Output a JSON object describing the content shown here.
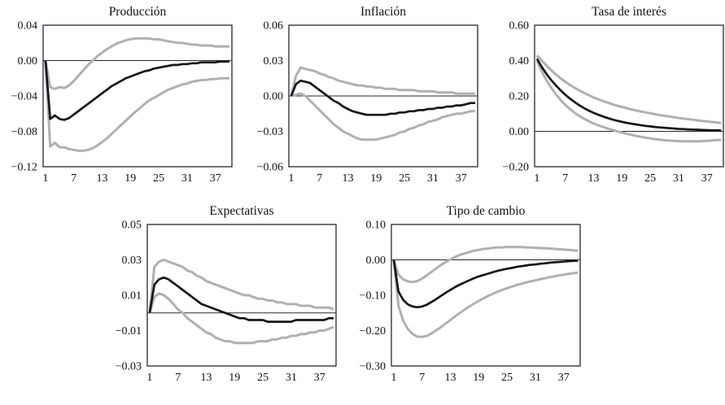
{
  "figure": {
    "background": "#ffffff",
    "frame_color": "#33373d",
    "zero_line_color": "#26282c",
    "band_color": "#b0b0b0",
    "median_color": "#14161a"
  },
  "chart_data": [
    {
      "type": "line",
      "title": "Producción",
      "xlabel": "",
      "ylabel": "",
      "x_range": [
        1,
        40
      ],
      "x_ticks": [
        1,
        7,
        13,
        19,
        25,
        31,
        37
      ],
      "ylim": [
        -0.12,
        0.04
      ],
      "y_ticks": [
        {
          "value": 0.04,
          "label": "0.04"
        },
        {
          "value": 0.0,
          "label": "0.00"
        },
        {
          "value": -0.04,
          "label": "−0.04"
        },
        {
          "value": -0.08,
          "label": "−0.08"
        },
        {
          "value": -0.12,
          "label": "−0.12"
        }
      ],
      "zero_line": true,
      "grid": false,
      "legend": "none",
      "series": [
        {
          "name": "upper-band",
          "color": "#b0b0b0",
          "width": 3,
          "values": [
            0.0,
            -0.03,
            -0.032,
            -0.03,
            -0.031,
            -0.028,
            -0.023,
            -0.017,
            -0.011,
            -0.005,
            0.0,
            0.005,
            0.009,
            0.013,
            0.016,
            0.019,
            0.021,
            0.023,
            0.024,
            0.025,
            0.025,
            0.025,
            0.025,
            0.024,
            0.024,
            0.023,
            0.022,
            0.021,
            0.02,
            0.02,
            0.019,
            0.018,
            0.018,
            0.017,
            0.017,
            0.017,
            0.016,
            0.016,
            0.016,
            0.016
          ]
        },
        {
          "name": "lower-band",
          "color": "#b0b0b0",
          "width": 3,
          "values": [
            0.0,
            -0.097,
            -0.093,
            -0.098,
            -0.098,
            -0.1,
            -0.101,
            -0.102,
            -0.102,
            -0.101,
            -0.099,
            -0.096,
            -0.092,
            -0.088,
            -0.083,
            -0.078,
            -0.073,
            -0.068,
            -0.063,
            -0.058,
            -0.054,
            -0.049,
            -0.045,
            -0.042,
            -0.039,
            -0.036,
            -0.033,
            -0.031,
            -0.029,
            -0.027,
            -0.026,
            -0.024,
            -0.023,
            -0.022,
            -0.022,
            -0.021,
            -0.021,
            -0.02,
            -0.02,
            -0.02
          ]
        },
        {
          "name": "response",
          "color": "#14161a",
          "width": 2.7,
          "values": [
            0.0,
            -0.066,
            -0.062,
            -0.066,
            -0.067,
            -0.065,
            -0.061,
            -0.057,
            -0.053,
            -0.049,
            -0.045,
            -0.041,
            -0.037,
            -0.033,
            -0.029,
            -0.026,
            -0.023,
            -0.02,
            -0.018,
            -0.016,
            -0.014,
            -0.012,
            -0.011,
            -0.009,
            -0.008,
            -0.007,
            -0.006,
            -0.005,
            -0.005,
            -0.004,
            -0.004,
            -0.003,
            -0.003,
            -0.002,
            -0.002,
            -0.002,
            -0.002,
            -0.001,
            -0.001,
            -0.001
          ]
        }
      ]
    },
    {
      "type": "line",
      "title": "Inflación",
      "xlabel": "",
      "ylabel": "",
      "x_range": [
        1,
        40
      ],
      "x_ticks": [
        1,
        7,
        13,
        19,
        25,
        31,
        37
      ],
      "ylim": [
        -0.06,
        0.06
      ],
      "y_ticks": [
        {
          "value": 0.06,
          "label": "0.06"
        },
        {
          "value": 0.03,
          "label": "0.03"
        },
        {
          "value": 0.0,
          "label": "0.00"
        },
        {
          "value": -0.03,
          "label": "−0.03"
        },
        {
          "value": -0.06,
          "label": "−0.06"
        }
      ],
      "zero_line": true,
      "grid": false,
      "legend": "none",
      "series": [
        {
          "name": "upper-band",
          "color": "#b0b0b0",
          "width": 3,
          "values": [
            0.0,
            0.017,
            0.024,
            0.023,
            0.022,
            0.021,
            0.019,
            0.018,
            0.016,
            0.015,
            0.013,
            0.012,
            0.011,
            0.01,
            0.009,
            0.009,
            0.008,
            0.008,
            0.007,
            0.007,
            0.006,
            0.006,
            0.006,
            0.005,
            0.005,
            0.005,
            0.005,
            0.004,
            0.004,
            0.004,
            0.004,
            0.003,
            0.003,
            0.003,
            0.003,
            0.002,
            0.002,
            0.002,
            0.002,
            0.002
          ]
        },
        {
          "name": "lower-band",
          "color": "#b0b0b0",
          "width": 3,
          "values": [
            0.0,
            0.001,
            0.002,
            0.0,
            -0.004,
            -0.008,
            -0.012,
            -0.016,
            -0.02,
            -0.024,
            -0.027,
            -0.03,
            -0.032,
            -0.034,
            -0.036,
            -0.037,
            -0.037,
            -0.037,
            -0.037,
            -0.036,
            -0.035,
            -0.034,
            -0.033,
            -0.031,
            -0.03,
            -0.028,
            -0.027,
            -0.025,
            -0.024,
            -0.022,
            -0.021,
            -0.02,
            -0.018,
            -0.017,
            -0.016,
            -0.015,
            -0.015,
            -0.014,
            -0.013,
            -0.013
          ]
        },
        {
          "name": "response",
          "color": "#14161a",
          "width": 2.7,
          "values": [
            0.0,
            0.01,
            0.013,
            0.012,
            0.011,
            0.008,
            0.005,
            0.002,
            -0.001,
            -0.004,
            -0.006,
            -0.009,
            -0.011,
            -0.013,
            -0.014,
            -0.015,
            -0.016,
            -0.016,
            -0.016,
            -0.016,
            -0.016,
            -0.015,
            -0.015,
            -0.014,
            -0.014,
            -0.013,
            -0.013,
            -0.012,
            -0.012,
            -0.011,
            -0.011,
            -0.01,
            -0.01,
            -0.009,
            -0.009,
            -0.008,
            -0.008,
            -0.007,
            -0.006,
            -0.006
          ]
        }
      ]
    },
    {
      "type": "line",
      "title": "Tasa de interés",
      "xlabel": "",
      "ylabel": "",
      "x_range": [
        1,
        40
      ],
      "x_ticks": [
        1,
        7,
        13,
        19,
        25,
        31,
        37
      ],
      "ylim": [
        -0.2,
        0.6
      ],
      "y_ticks": [
        {
          "value": 0.6,
          "label": "0.60"
        },
        {
          "value": 0.4,
          "label": "0.40"
        },
        {
          "value": 0.2,
          "label": "0.20"
        },
        {
          "value": 0.0,
          "label": "0.00"
        },
        {
          "value": -0.2,
          "label": "−0.20"
        }
      ],
      "zero_line": true,
      "grid": false,
      "legend": "none",
      "series": [
        {
          "name": "upper-band",
          "color": "#b0b0b0",
          "width": 3,
          "values": [
            0.43,
            0.4,
            0.372,
            0.346,
            0.322,
            0.3,
            0.28,
            0.262,
            0.246,
            0.231,
            0.217,
            0.204,
            0.192,
            0.181,
            0.171,
            0.162,
            0.153,
            0.145,
            0.138,
            0.131,
            0.124,
            0.118,
            0.112,
            0.107,
            0.102,
            0.097,
            0.092,
            0.088,
            0.084,
            0.08,
            0.076,
            0.072,
            0.069,
            0.066,
            0.062,
            0.059,
            0.056,
            0.053,
            0.05,
            0.048
          ]
        },
        {
          "name": "lower-band",
          "color": "#b0b0b0",
          "width": 3,
          "values": [
            0.398,
            0.34,
            0.29,
            0.247,
            0.21,
            0.178,
            0.15,
            0.126,
            0.105,
            0.087,
            0.071,
            0.057,
            0.045,
            0.034,
            0.025,
            0.016,
            0.008,
            0.0,
            -0.007,
            -0.014,
            -0.02,
            -0.026,
            -0.031,
            -0.036,
            -0.04,
            -0.044,
            -0.047,
            -0.05,
            -0.052,
            -0.054,
            -0.055,
            -0.056,
            -0.056,
            -0.056,
            -0.056,
            -0.055,
            -0.054,
            -0.052,
            -0.05,
            -0.047
          ]
        },
        {
          "name": "response",
          "color": "#14161a",
          "width": 2.7,
          "values": [
            0.41,
            0.365,
            0.325,
            0.29,
            0.26,
            0.232,
            0.207,
            0.185,
            0.165,
            0.147,
            0.131,
            0.117,
            0.105,
            0.094,
            0.084,
            0.075,
            0.067,
            0.06,
            0.054,
            0.048,
            0.043,
            0.039,
            0.035,
            0.031,
            0.028,
            0.025,
            0.022,
            0.02,
            0.018,
            0.016,
            0.014,
            0.013,
            0.011,
            0.01,
            0.009,
            0.008,
            0.007,
            0.006,
            0.006,
            0.005
          ]
        }
      ]
    },
    {
      "type": "line",
      "title": "Expectativas",
      "xlabel": "",
      "ylabel": "",
      "x_range": [
        1,
        40
      ],
      "x_ticks": [
        1,
        7,
        13,
        19,
        25,
        31,
        37
      ],
      "ylim": [
        -0.03,
        0.05
      ],
      "y_ticks": [
        {
          "value": 0.05,
          "label": "0.05"
        },
        {
          "value": 0.03,
          "label": "0.03"
        },
        {
          "value": 0.01,
          "label": "0.01"
        },
        {
          "value": -0.01,
          "label": "−0.01"
        },
        {
          "value": -0.03,
          "label": "−0.03"
        }
      ],
      "zero_line": true,
      "grid": false,
      "legend": "none",
      "series": [
        {
          "name": "upper-band",
          "color": "#b0b0b0",
          "width": 3,
          "values": [
            0.0,
            0.026,
            0.029,
            0.03,
            0.029,
            0.028,
            0.027,
            0.026,
            0.024,
            0.023,
            0.021,
            0.02,
            0.018,
            0.017,
            0.016,
            0.015,
            0.014,
            0.013,
            0.012,
            0.011,
            0.01,
            0.01,
            0.009,
            0.008,
            0.008,
            0.007,
            0.007,
            0.006,
            0.006,
            0.005,
            0.005,
            0.005,
            0.004,
            0.004,
            0.004,
            0.003,
            0.003,
            0.003,
            0.003,
            0.002
          ]
        },
        {
          "name": "lower-band",
          "color": "#b0b0b0",
          "width": 3,
          "values": [
            0.0,
            0.009,
            0.011,
            0.01,
            0.008,
            0.005,
            0.002,
            0.0,
            -0.003,
            -0.005,
            -0.007,
            -0.009,
            -0.011,
            -0.012,
            -0.014,
            -0.015,
            -0.016,
            -0.016,
            -0.017,
            -0.017,
            -0.017,
            -0.017,
            -0.017,
            -0.016,
            -0.016,
            -0.016,
            -0.015,
            -0.015,
            -0.014,
            -0.014,
            -0.013,
            -0.013,
            -0.012,
            -0.012,
            -0.011,
            -0.011,
            -0.01,
            -0.01,
            -0.009,
            -0.008
          ]
        },
        {
          "name": "response",
          "color": "#14161a",
          "width": 2.7,
          "values": [
            0.0,
            0.016,
            0.019,
            0.02,
            0.019,
            0.017,
            0.015,
            0.013,
            0.011,
            0.009,
            0.007,
            0.005,
            0.004,
            0.003,
            0.002,
            0.001,
            0.0,
            -0.001,
            -0.002,
            -0.003,
            -0.003,
            -0.004,
            -0.004,
            -0.004,
            -0.004,
            -0.005,
            -0.005,
            -0.005,
            -0.005,
            -0.005,
            -0.005,
            -0.004,
            -0.004,
            -0.004,
            -0.004,
            -0.004,
            -0.004,
            -0.004,
            -0.003,
            -0.003
          ]
        }
      ]
    },
    {
      "type": "line",
      "title": "Tipo de cambio",
      "xlabel": "",
      "ylabel": "",
      "x_range": [
        1,
        40
      ],
      "x_ticks": [
        1,
        7,
        13,
        19,
        25,
        31,
        37
      ],
      "ylim": [
        -0.3,
        0.1
      ],
      "y_ticks": [
        {
          "value": 0.1,
          "label": "0.10"
        },
        {
          "value": 0.0,
          "label": "0.00"
        },
        {
          "value": -0.1,
          "label": "−0.10"
        },
        {
          "value": -0.2,
          "label": "−0.20"
        },
        {
          "value": -0.3,
          "label": "−0.30"
        }
      ],
      "zero_line": true,
      "grid": false,
      "legend": "none",
      "series": [
        {
          "name": "upper-band",
          "color": "#b0b0b0",
          "width": 3,
          "values": [
            0.0,
            -0.042,
            -0.055,
            -0.061,
            -0.063,
            -0.06,
            -0.053,
            -0.044,
            -0.034,
            -0.024,
            -0.015,
            -0.006,
            0.001,
            0.008,
            0.014,
            0.018,
            0.022,
            0.026,
            0.028,
            0.031,
            0.032,
            0.034,
            0.035,
            0.035,
            0.036,
            0.036,
            0.036,
            0.036,
            0.035,
            0.035,
            0.034,
            0.033,
            0.033,
            0.032,
            0.031,
            0.03,
            0.029,
            0.028,
            0.027,
            0.026
          ]
        },
        {
          "name": "lower-band",
          "color": "#b0b0b0",
          "width": 3,
          "values": [
            0.0,
            -0.13,
            -0.172,
            -0.196,
            -0.21,
            -0.217,
            -0.218,
            -0.215,
            -0.208,
            -0.199,
            -0.19,
            -0.18,
            -0.17,
            -0.16,
            -0.15,
            -0.141,
            -0.132,
            -0.124,
            -0.116,
            -0.109,
            -0.102,
            -0.096,
            -0.09,
            -0.085,
            -0.08,
            -0.076,
            -0.071,
            -0.068,
            -0.064,
            -0.061,
            -0.058,
            -0.055,
            -0.052,
            -0.049,
            -0.047,
            -0.044,
            -0.042,
            -0.04,
            -0.038,
            -0.036
          ]
        },
        {
          "name": "response",
          "color": "#14161a",
          "width": 2.7,
          "values": [
            0.0,
            -0.09,
            -0.113,
            -0.126,
            -0.132,
            -0.134,
            -0.132,
            -0.127,
            -0.119,
            -0.111,
            -0.102,
            -0.093,
            -0.085,
            -0.077,
            -0.07,
            -0.064,
            -0.058,
            -0.052,
            -0.047,
            -0.043,
            -0.039,
            -0.035,
            -0.031,
            -0.028,
            -0.025,
            -0.023,
            -0.02,
            -0.018,
            -0.016,
            -0.014,
            -0.013,
            -0.011,
            -0.01,
            -0.008,
            -0.007,
            -0.006,
            -0.005,
            -0.004,
            -0.003,
            -0.003
          ]
        }
      ]
    }
  ]
}
